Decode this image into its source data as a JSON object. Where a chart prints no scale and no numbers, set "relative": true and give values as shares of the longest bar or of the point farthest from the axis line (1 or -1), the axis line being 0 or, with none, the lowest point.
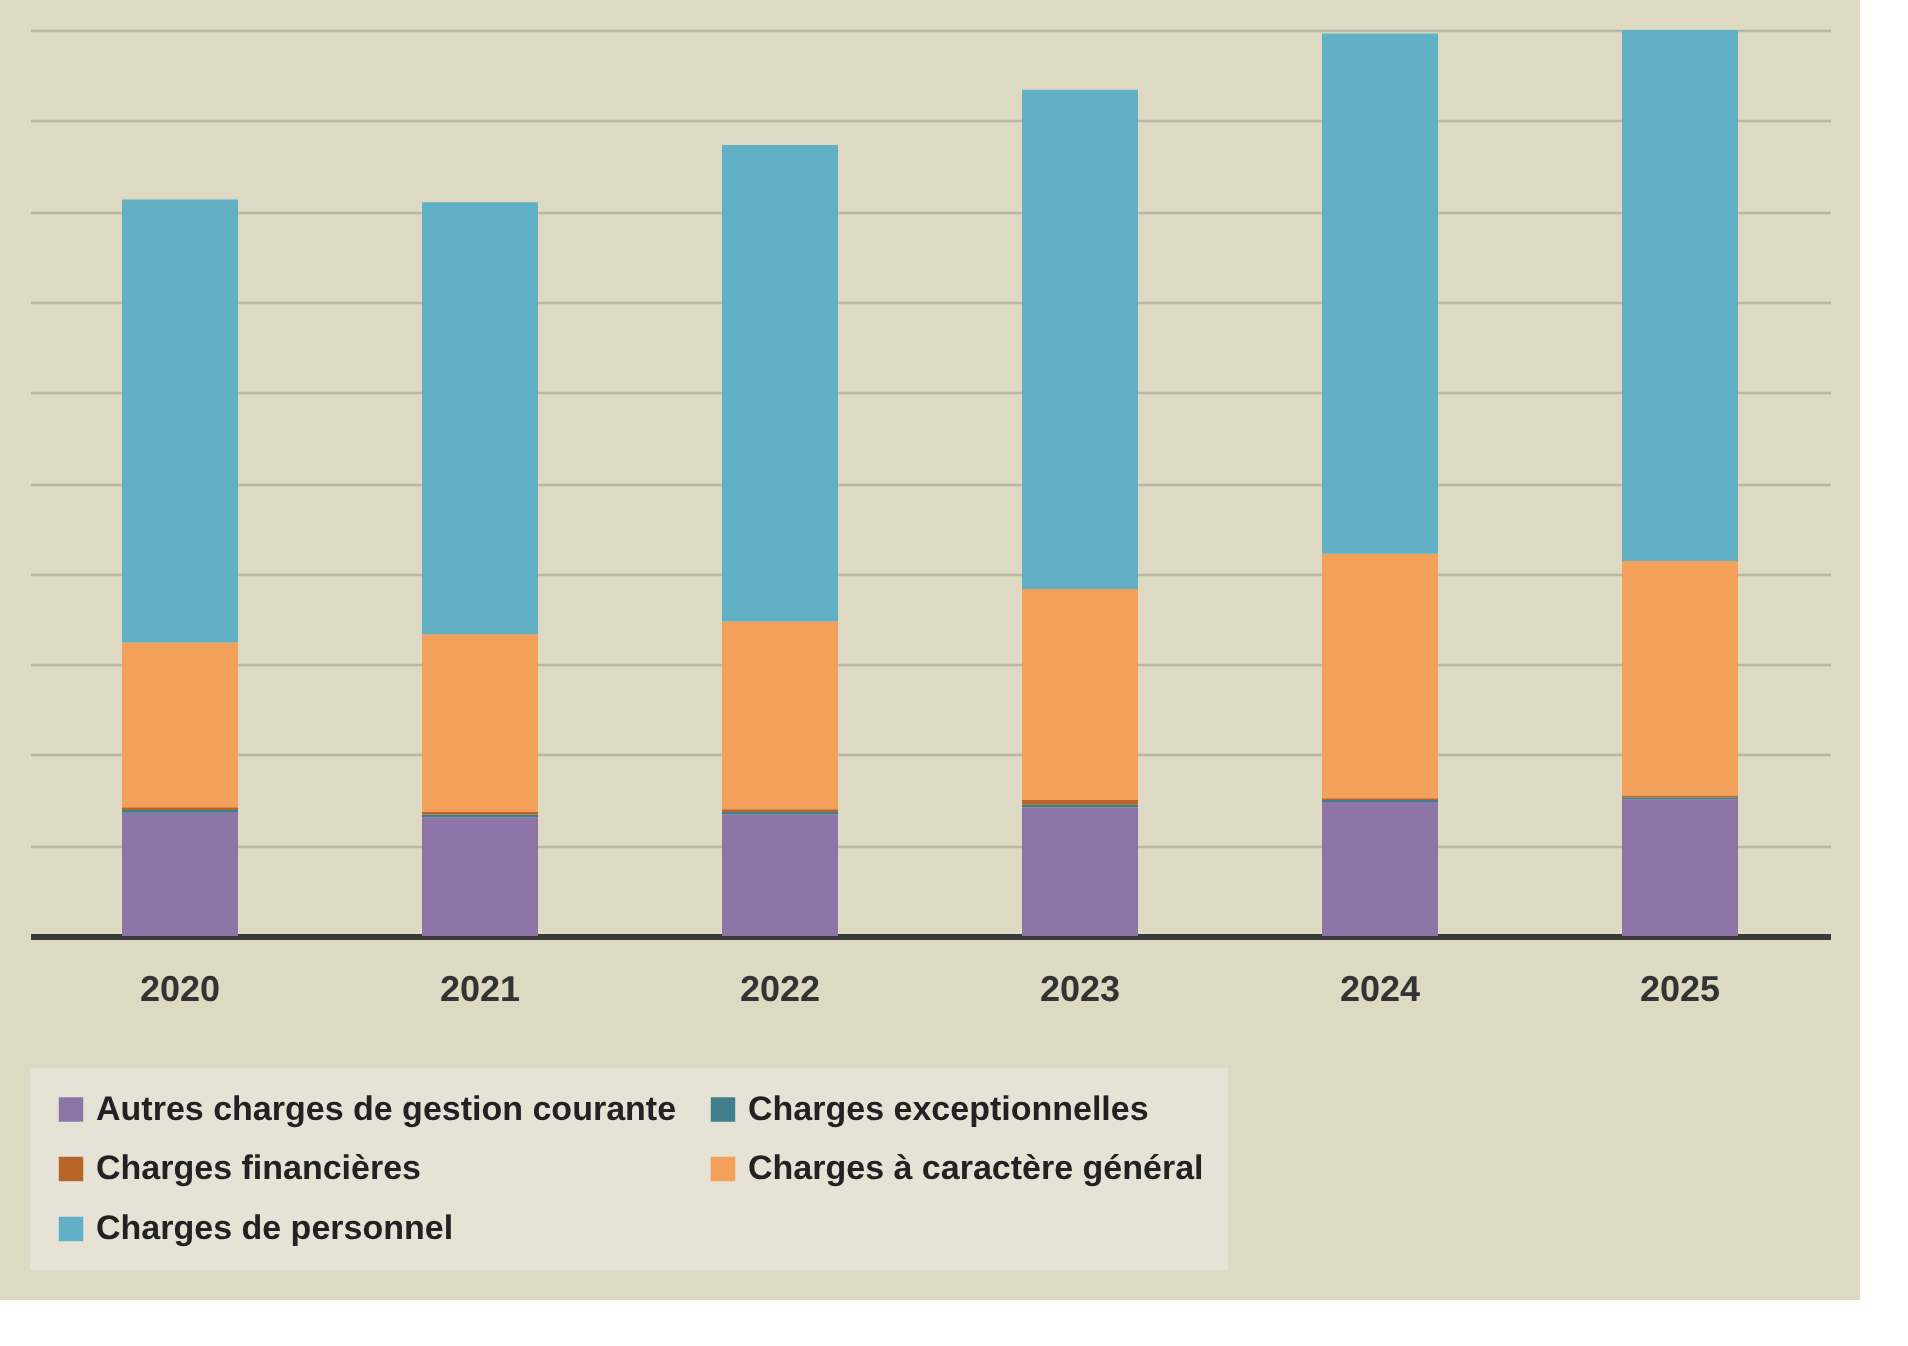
{
  "chart_data": {
    "type": "bar",
    "stacked": true,
    "relative": true,
    "grid": "y",
    "legend": "bottom",
    "categories": [
      "2020",
      "2021",
      "2022",
      "2023",
      "2024",
      "2025"
    ],
    "series": [
      {
        "name": "Autres charges de gestion courante",
        "color": "#8e75a8",
        "values": [
          0.136,
          0.131,
          0.134,
          0.142,
          0.148,
          0.151
        ]
      },
      {
        "name": "Charges exceptionnelles",
        "color": "#3f7f8c",
        "values": [
          0.003,
          0.003,
          0.003,
          0.003,
          0.002,
          0.002
        ]
      },
      {
        "name": "Charges financières",
        "color": "#b8652a",
        "values": [
          0.003,
          0.003,
          0.003,
          0.005,
          0.002,
          0.002
        ]
      },
      {
        "name": "Charges à caractère général",
        "color": "#f2a05a",
        "values": [
          0.182,
          0.196,
          0.207,
          0.233,
          0.27,
          0.259
        ]
      },
      {
        "name": "Charges de personnel",
        "color": "#61b0c6",
        "values": [
          0.489,
          0.477,
          0.526,
          0.551,
          0.574,
          0.586
        ]
      }
    ]
  }
}
